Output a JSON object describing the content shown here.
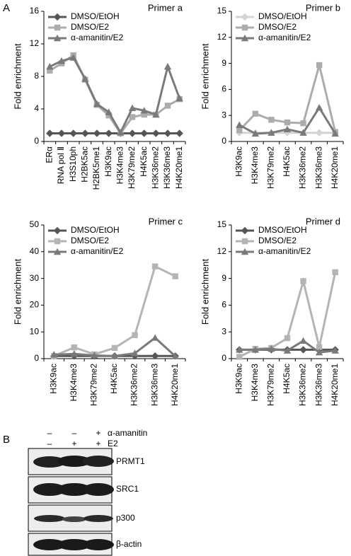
{
  "panel_labels": [
    "A",
    "B"
  ],
  "chart_data": [
    {
      "type": "line",
      "title": "Primer a",
      "ylabel": "Fold enrichment",
      "categories": [
        "ERα",
        "RNA pol Ⅱ",
        "H3S10ph",
        "H2BK5ac",
        "H2BK5me1",
        "H3K9ac",
        "H3K4me3",
        "H3K79me2",
        "H4K5ac",
        "H3K36me2",
        "H3K36me3",
        "H4K20me1"
      ],
      "ylim": [
        0,
        16
      ],
      "yticks": [
        0,
        4,
        8,
        12,
        16
      ],
      "legend": "top-left",
      "series": [
        {
          "name": "DMSO/EtOH",
          "color": "#555555",
          "marker": "diamond",
          "values": [
            1,
            1,
            1,
            1,
            1,
            1,
            1,
            1,
            1,
            1,
            1,
            1
          ]
        },
        {
          "name": "DMSO/E2",
          "color": "#acacac",
          "marker": "square",
          "values": [
            8.7,
            9.6,
            10.6,
            7.6,
            4.5,
            3.2,
            1.0,
            3.0,
            3.3,
            3.3,
            4.4,
            5.2
          ]
        },
        {
          "name": "α-amanitin/E2",
          "color": "#7a7a7a",
          "marker": "triangle",
          "values": [
            9.2,
            9.9,
            10.3,
            7.7,
            4.6,
            3.6,
            1.1,
            4.1,
            3.8,
            3.3,
            9.2,
            5.3
          ]
        }
      ]
    },
    {
      "type": "line",
      "title": "Primer b",
      "ylabel": "Fold enrichment",
      "categories": [
        "H3K9ac",
        "H3K4me3",
        "H3K79me2",
        "H4K5ac",
        "H3K36me2",
        "H3K36me3",
        "H4K20me1"
      ],
      "ylim": [
        0,
        15
      ],
      "yticks": [
        0,
        3,
        6,
        9,
        12,
        15
      ],
      "legend": "top-left",
      "series": [
        {
          "name": "DMSO/EtOH",
          "color": "#d4d4d4",
          "marker": "diamond",
          "values": [
            1,
            1,
            1,
            1,
            1,
            1,
            1
          ]
        },
        {
          "name": "DMSO/E2",
          "color": "#acacac",
          "marker": "square",
          "values": [
            1.3,
            3.2,
            2.5,
            2.2,
            2.1,
            8.8,
            1.1
          ]
        },
        {
          "name": "α-amanitin/E2",
          "color": "#7a7a7a",
          "marker": "triangle",
          "values": [
            1.9,
            0.9,
            1.0,
            1.4,
            1.0,
            3.9,
            0.9
          ]
        }
      ]
    },
    {
      "type": "line",
      "title": "Primer c",
      "ylabel": "Fold enrichment",
      "categories": [
        "H3K9ac",
        "H3K4me3",
        "H3K79me2",
        "H4K5ac",
        "H3K36me2",
        "H3K36me3",
        "H4K20me1"
      ],
      "ylim": [
        0,
        50
      ],
      "yticks": [
        0,
        10,
        20,
        30,
        40,
        50
      ],
      "legend": "top-left",
      "series": [
        {
          "name": "DMSO/EtOH",
          "color": "#555555",
          "marker": "diamond",
          "values": [
            1,
            1,
            1,
            1,
            1,
            1,
            1
          ]
        },
        {
          "name": "DMSO/E2",
          "color": "#b4b4b4",
          "marker": "square",
          "values": [
            1.0,
            4.2,
            1.6,
            4.0,
            8.8,
            34.5,
            30.8
          ]
        },
        {
          "name": "α-amanitin/E2",
          "color": "#7a7a7a",
          "marker": "triangle",
          "values": [
            1.5,
            1.8,
            1.2,
            1.0,
            2.0,
            7.8,
            0.9
          ]
        }
      ]
    },
    {
      "type": "line",
      "title": "Primer d",
      "ylabel": "Fold enrichment",
      "categories": [
        "H3K9ac",
        "H3K4me3",
        "H3K79me2",
        "H4K5ac",
        "H3K36me2",
        "H3K36me3",
        "H4K20me1"
      ],
      "ylim": [
        0,
        15
      ],
      "yticks": [
        0,
        3,
        6,
        9,
        12,
        15
      ],
      "legend": "top-left",
      "series": [
        {
          "name": "DMSO/EtOH",
          "color": "#555555",
          "marker": "diamond",
          "values": [
            1,
            1,
            1,
            1,
            1,
            1,
            1
          ]
        },
        {
          "name": "DMSO/E2",
          "color": "#b4b4b4",
          "marker": "square",
          "values": [
            0.2,
            1.1,
            1.2,
            2.3,
            8.7,
            1.3,
            9.7
          ]
        },
        {
          "name": "α-amanitin/E2",
          "color": "#7a7a7a",
          "marker": "triangle",
          "values": [
            1.0,
            1.0,
            1.1,
            0.9,
            2.0,
            0.7,
            0.9
          ]
        }
      ]
    }
  ],
  "blot": {
    "treatments": [
      {
        "name": "α-amanitin",
        "signs": [
          "–",
          "–",
          "+"
        ]
      },
      {
        "name": "E2",
        "signs": [
          "–",
          "+",
          "+"
        ]
      }
    ],
    "proteins": [
      "PRMT1",
      "SRC1",
      "p300",
      "β-actin"
    ]
  }
}
